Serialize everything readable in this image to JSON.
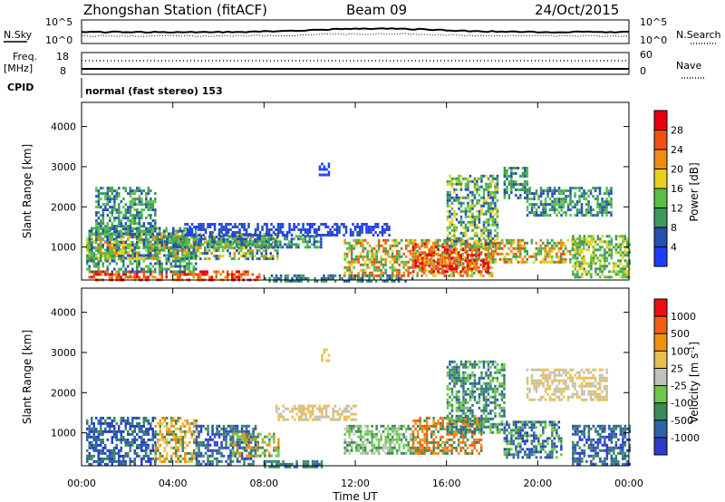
{
  "header": {
    "station": "Zhongshan Station (fitACF)",
    "beam": "Beam 09",
    "date": "24/Oct/2015"
  },
  "noise_panel": {
    "left_label": "N.Sky",
    "right_label": "N.Search",
    "left_ticks": [
      "10^5",
      "10^0"
    ],
    "right_ticks": [
      "10^5",
      "10^0"
    ]
  },
  "freq_panel": {
    "left_label_1": "Freq.",
    "left_label_2": "[MHz]",
    "left_ticks": [
      "18",
      "8"
    ],
    "right_label": "Nave",
    "right_ticks": [
      "60",
      "0"
    ]
  },
  "cpid_panel": {
    "label": "CPID",
    "mode_text": "normal (fast stereo) 153"
  },
  "colors": {
    "power_scale": [
      "#1f3cff",
      "#264fb2",
      "#3a9a5c",
      "#58c048",
      "#e8d020",
      "#f08a10",
      "#f05010",
      "#e8000e"
    ],
    "velocity_scale": [
      "#2a3cc8",
      "#2e62a8",
      "#3a8a5a",
      "#6cc84a",
      "#c0c0bc",
      "#e8c050",
      "#f09010",
      "#f06010",
      "#e81010"
    ]
  },
  "chart_data": [
    {
      "type": "heatmap",
      "name": "power",
      "xlabel": "Time UT",
      "ylabel": "Slant Range [km]",
      "x_range_hours": [
        0,
        24
      ],
      "y_range_km": [
        180,
        4600
      ],
      "x_ticks": [
        "00:00",
        "04:00",
        "08:00",
        "12:00",
        "16:00",
        "20:00",
        "00:00"
      ],
      "y_ticks": [
        {
          "value": 1000,
          "label": "1000"
        },
        {
          "value": 2000,
          "label": "2000"
        },
        {
          "value": 3000,
          "label": "3000"
        },
        {
          "value": 4000,
          "label": "4000"
        }
      ],
      "colorbar": {
        "label": "Power [dB]",
        "range": [
          0,
          32
        ],
        "tick_values": [
          4,
          8,
          12,
          16,
          20,
          24,
          28
        ],
        "tick_labels": [
          "4",
          "8",
          "12",
          "16",
          "20",
          "24",
          "28"
        ]
      },
      "regions": [
        {
          "t": [
            0.2,
            7.8
          ],
          "r": [
            200,
            420
          ],
          "levels": [
            5,
            6,
            7
          ]
        },
        {
          "t": [
            0.2,
            5.0
          ],
          "r": [
            380,
            1500
          ],
          "levels": [
            1,
            2,
            3
          ]
        },
        {
          "t": [
            0.2,
            8.6
          ],
          "r": [
            700,
            1350
          ],
          "levels": [
            1,
            2,
            3,
            4,
            5
          ]
        },
        {
          "t": [
            0.6,
            3.2
          ],
          "r": [
            1300,
            2500
          ],
          "levels": [
            1,
            2,
            3
          ]
        },
        {
          "t": [
            3.6,
            10.5
          ],
          "r": [
            1000,
            1300
          ],
          "levels": [
            1,
            2,
            3
          ]
        },
        {
          "t": [
            4.5,
            13.5
          ],
          "r": [
            1300,
            1600
          ],
          "levels": [
            0,
            1
          ]
        },
        {
          "t": [
            8.0,
            14.5
          ],
          "r": [
            180,
            320
          ],
          "levels": [
            1,
            2
          ]
        },
        {
          "t": [
            11.5,
            18.0
          ],
          "r": [
            300,
            1200
          ],
          "levels": [
            2,
            3,
            4,
            5,
            6
          ]
        },
        {
          "t": [
            14.5,
            17.8
          ],
          "r": [
            400,
            1100
          ],
          "levels": [
            5,
            6,
            7
          ]
        },
        {
          "t": [
            16.0,
            18.2
          ],
          "r": [
            1000,
            2800
          ],
          "levels": [
            1,
            2,
            3,
            4
          ]
        },
        {
          "t": [
            17.8,
            22.0
          ],
          "r": [
            600,
            1200
          ],
          "levels": [
            2,
            3,
            4,
            5,
            6
          ]
        },
        {
          "t": [
            18.5,
            19.5
          ],
          "r": [
            2200,
            3000
          ],
          "levels": [
            1,
            2,
            3
          ]
        },
        {
          "t": [
            19.5,
            23.2
          ],
          "r": [
            1800,
            2500
          ],
          "levels": [
            1,
            2,
            3
          ]
        },
        {
          "t": [
            21.5,
            24.0
          ],
          "r": [
            250,
            1300
          ],
          "levels": [
            2,
            3,
            4
          ]
        },
        {
          "t": [
            10.4,
            10.8
          ],
          "r": [
            2800,
            3100
          ],
          "levels": [
            0
          ]
        }
      ]
    },
    {
      "type": "heatmap",
      "name": "velocity",
      "xlabel": "Time UT",
      "ylabel": "Slant Range [km]",
      "x_range_hours": [
        0,
        24
      ],
      "y_range_km": [
        180,
        4600
      ],
      "x_ticks": [
        "00:00",
        "04:00",
        "08:00",
        "12:00",
        "16:00",
        "20:00",
        "00:00"
      ],
      "y_ticks": [
        {
          "value": 1000,
          "label": "1000"
        },
        {
          "value": 2000,
          "label": "2000"
        },
        {
          "value": 3000,
          "label": "3000"
        },
        {
          "value": 4000,
          "label": "4000"
        }
      ],
      "colorbar": {
        "label": "Velocity [m s^-1]",
        "tick_labels": [
          "1000",
          "500",
          "100",
          "25",
          "-25",
          "-100",
          "-500",
          "-1000"
        ]
      },
      "regions": [
        {
          "t": [
            0.2,
            3.2
          ],
          "r": [
            200,
            1400
          ],
          "levels": [
            0,
            1,
            2
          ]
        },
        {
          "t": [
            3.2,
            5.0
          ],
          "r": [
            300,
            1400
          ],
          "levels": [
            5,
            6,
            2
          ]
        },
        {
          "t": [
            5.0,
            7.6
          ],
          "r": [
            200,
            1200
          ],
          "levels": [
            0,
            1,
            2
          ]
        },
        {
          "t": [
            6.5,
            8.6
          ],
          "r": [
            400,
            1000
          ],
          "levels": [
            2,
            3,
            6
          ]
        },
        {
          "t": [
            8.0,
            10.5
          ],
          "r": [
            180,
            320
          ],
          "levels": [
            1,
            2
          ]
        },
        {
          "t": [
            8.5,
            12.0
          ],
          "r": [
            1300,
            1700
          ],
          "levels": [
            4,
            5
          ]
        },
        {
          "t": [
            11.5,
            14.5
          ],
          "r": [
            500,
            1200
          ],
          "levels": [
            2,
            3,
            4
          ]
        },
        {
          "t": [
            14.5,
            17.5
          ],
          "r": [
            500,
            1400
          ],
          "levels": [
            6,
            7,
            2
          ]
        },
        {
          "t": [
            16.0,
            18.5
          ],
          "r": [
            1000,
            2800
          ],
          "levels": [
            2,
            3,
            1
          ]
        },
        {
          "t": [
            18.5,
            21.0
          ],
          "r": [
            400,
            1300
          ],
          "levels": [
            0,
            1,
            2,
            3
          ]
        },
        {
          "t": [
            19.5,
            23.0
          ],
          "r": [
            1800,
            2600
          ],
          "levels": [
            4,
            5
          ]
        },
        {
          "t": [
            21.5,
            24.0
          ],
          "r": [
            250,
            1200
          ],
          "levels": [
            0,
            1,
            2
          ]
        },
        {
          "t": [
            10.5,
            10.8
          ],
          "r": [
            2800,
            3100
          ],
          "levels": [
            5
          ]
        }
      ]
    }
  ]
}
